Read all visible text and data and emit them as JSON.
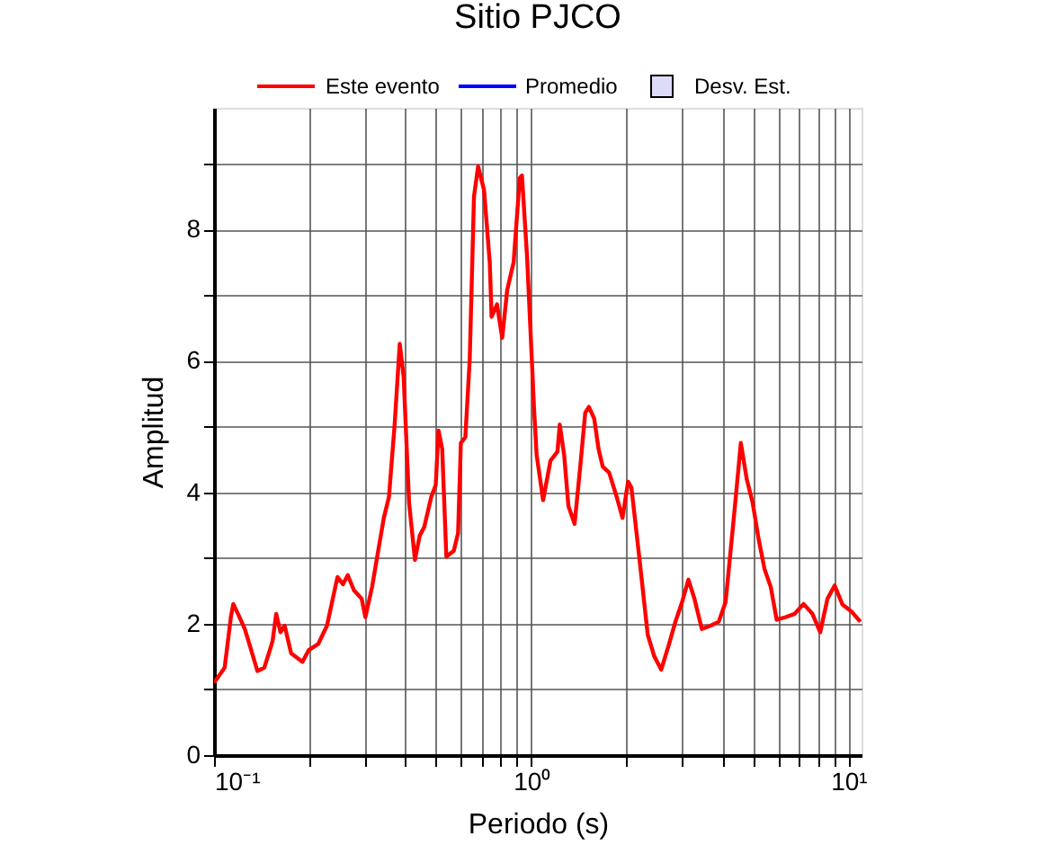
{
  "chart_data": {
    "type": "line",
    "title": "Sitio PJCO",
    "xlabel": "Periodo (s)",
    "ylabel": "Amplitud",
    "log": "x",
    "grid": true,
    "legend": "top",
    "xlim": [
      0.1,
      11
    ],
    "ylim": [
      0,
      9.85
    ],
    "xticks": [
      {
        "value": 0.1,
        "label": "10⁻¹"
      },
      {
        "value": 0.2,
        "label": null
      },
      {
        "value": 0.3,
        "label": null
      },
      {
        "value": 0.4,
        "label": null
      },
      {
        "value": 0.5,
        "label": null
      },
      {
        "value": 0.6,
        "label": null
      },
      {
        "value": 0.7,
        "label": null
      },
      {
        "value": 0.8,
        "label": null
      },
      {
        "value": 0.9,
        "label": null
      },
      {
        "value": 1,
        "label": "10⁰"
      },
      {
        "value": 2,
        "label": null
      },
      {
        "value": 3,
        "label": null
      },
      {
        "value": 4,
        "label": null
      },
      {
        "value": 5,
        "label": null
      },
      {
        "value": 6,
        "label": null
      },
      {
        "value": 7,
        "label": null
      },
      {
        "value": 8,
        "label": null
      },
      {
        "value": 9,
        "label": null
      },
      {
        "value": 10,
        "label": "10¹"
      }
    ],
    "yticks": [
      0,
      {
        "value": 1,
        "label": null
      },
      2,
      {
        "value": 3,
        "label": null
      },
      4,
      {
        "value": 5,
        "label": null
      },
      6,
      {
        "value": 7,
        "label": null
      },
      8,
      {
        "value": 9,
        "label": null
      }
    ],
    "series": [
      {
        "name": "Este evento",
        "color": "#ff0000",
        "x": [
          0.1,
          0.108,
          0.113,
          0.115,
          0.119,
          0.125,
          0.13,
          0.137,
          0.144,
          0.15,
          0.153,
          0.157,
          0.162,
          0.167,
          0.175,
          0.19,
          0.199,
          0.213,
          0.227,
          0.245,
          0.255,
          0.264,
          0.276,
          0.292,
          0.3,
          0.315,
          0.329,
          0.343,
          0.356,
          0.371,
          0.385,
          0.396,
          0.412,
          0.43,
          0.445,
          0.46,
          0.484,
          0.5,
          0.51,
          0.524,
          0.54,
          0.57,
          0.588,
          0.6,
          0.62,
          0.64,
          0.66,
          0.68,
          0.71,
          0.74,
          0.75,
          0.78,
          0.81,
          0.84,
          0.88,
          0.92,
          0.935,
          0.97,
          1.0,
          1.02,
          1.04,
          1.09,
          1.15,
          1.21,
          1.23,
          1.27,
          1.31,
          1.37,
          1.43,
          1.48,
          1.52,
          1.58,
          1.63,
          1.68,
          1.76,
          1.86,
          1.94,
          2.02,
          2.07,
          2.19,
          2.33,
          2.44,
          2.57,
          2.72,
          2.84,
          2.99,
          3.13,
          3.27,
          3.45,
          3.68,
          3.9,
          4.1,
          4.38,
          4.58,
          4.78,
          4.99,
          5.21,
          5.44,
          5.69,
          5.94,
          6.34,
          6.77,
          7.22,
          7.7,
          8.15,
          8.59,
          9.05,
          9.58,
          10.2,
          10.9
        ],
        "values": [
          1.1,
          1.33,
          2.1,
          2.3,
          2.15,
          1.92,
          1.65,
          1.28,
          1.33,
          1.6,
          1.74,
          2.15,
          1.87,
          1.97,
          1.55,
          1.42,
          1.6,
          1.69,
          1.97,
          2.71,
          2.6,
          2.74,
          2.51,
          2.38,
          2.1,
          2.56,
          3.1,
          3.61,
          3.93,
          5.03,
          6.26,
          5.76,
          3.84,
          2.97,
          3.34,
          3.47,
          3.93,
          4.11,
          4.94,
          4.66,
          3.02,
          3.11,
          3.38,
          4.75,
          4.84,
          6.03,
          8.5,
          8.96,
          8.6,
          7.5,
          6.67,
          6.86,
          6.35,
          7.08,
          7.5,
          8.78,
          8.82,
          7.59,
          6.22,
          5.3,
          4.57,
          3.88,
          4.48,
          4.62,
          5.03,
          4.57,
          3.79,
          3.52,
          4.43,
          5.21,
          5.3,
          5.12,
          4.66,
          4.39,
          4.3,
          3.93,
          3.61,
          4.16,
          4.07,
          3.02,
          1.83,
          1.51,
          1.3,
          1.69,
          2.01,
          2.33,
          2.67,
          2.38,
          1.92,
          1.97,
          2.03,
          2.33,
          3.75,
          4.75,
          4.2,
          3.84,
          3.29,
          2.83,
          2.56,
          2.06,
          2.1,
          2.15,
          2.3,
          2.15,
          1.87,
          2.38,
          2.58,
          2.29,
          2.19,
          2.03
        ]
      },
      {
        "name": "Promedio",
        "color": "#0000ff",
        "type": "line"
      },
      {
        "name": "Desv. Est.",
        "color": "#dcdcf8",
        "type": "area"
      }
    ]
  }
}
